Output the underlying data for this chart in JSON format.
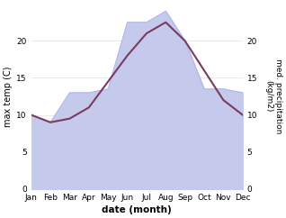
{
  "months": [
    1,
    2,
    3,
    4,
    5,
    6,
    7,
    8,
    9,
    10,
    11,
    12
  ],
  "month_labels": [
    "Jan",
    "Feb",
    "Mar",
    "Apr",
    "May",
    "Jun",
    "Jul",
    "Aug",
    "Sep",
    "Oct",
    "Nov",
    "Dec"
  ],
  "temp": [
    10.0,
    9.0,
    9.5,
    11.0,
    14.5,
    18.0,
    21.0,
    22.5,
    20.0,
    16.0,
    12.0,
    10.0
  ],
  "precip": [
    10.0,
    9.0,
    13.0,
    13.0,
    13.5,
    22.5,
    22.5,
    24.0,
    20.0,
    13.5,
    13.5,
    13.0
  ],
  "temp_color": "#7b3b5e",
  "precip_fill_color": "#c5caed",
  "precip_line_color": "#b0b8e8",
  "ylabel_left": "max temp (C)",
  "ylabel_right": "med. precipitation\n(kg/m2)",
  "xlabel": "date (month)",
  "ylim": [
    0,
    25
  ],
  "yticks": [
    0,
    5,
    10,
    15,
    20
  ],
  "bg_color": "#ffffff"
}
